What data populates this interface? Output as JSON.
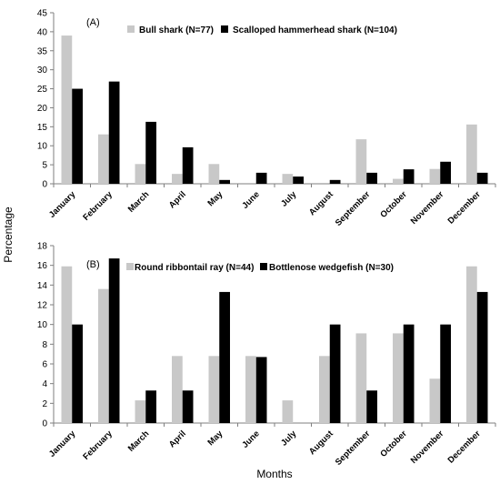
{
  "figure": {
    "ylabel": "Percentage",
    "xlabel": "Months"
  },
  "colors": {
    "series1": "#c8c8c8",
    "series2": "#000000",
    "axis": "#7f7f7f"
  },
  "chart_data": [
    {
      "type": "bar",
      "panel_label": "(A)",
      "categories": [
        "January",
        "February",
        "March",
        "April",
        "May",
        "June",
        "July",
        "August",
        "September",
        "October",
        "November",
        "December"
      ],
      "series": [
        {
          "name": "Bull shark (N=77)",
          "values": [
            39,
            13,
            5.2,
            2.6,
            5.2,
            0,
            2.6,
            0,
            11.7,
            1.3,
            3.9,
            15.6
          ]
        },
        {
          "name": "Scalloped hammerhead shark (N=104)",
          "values": [
            25,
            26.9,
            16.3,
            9.6,
            1,
            2.9,
            1.9,
            1,
            2.9,
            3.8,
            5.8,
            2.9
          ]
        }
      ],
      "ylim": [
        0,
        45
      ],
      "yticks": [
        0,
        5,
        10,
        15,
        20,
        25,
        30,
        35,
        40,
        45
      ],
      "grid": false,
      "legend": "top"
    },
    {
      "type": "bar",
      "panel_label": "(B)",
      "categories": [
        "January",
        "February",
        "March",
        "April",
        "May",
        "June",
        "July",
        "August",
        "September",
        "October",
        "November",
        "December"
      ],
      "series": [
        {
          "name": "Round ribbontail ray (N=44)",
          "values": [
            15.9,
            13.6,
            2.3,
            6.8,
            6.8,
            6.8,
            2.3,
            6.8,
            9.1,
            9.1,
            4.5,
            15.9
          ]
        },
        {
          "name": "Bottlenose wedgefish (N=30)",
          "values": [
            10,
            16.7,
            3.3,
            3.3,
            13.3,
            6.7,
            0,
            10,
            3.3,
            10,
            10,
            13.3
          ]
        }
      ],
      "ylim": [
        0,
        18
      ],
      "yticks": [
        0,
        2,
        4,
        6,
        8,
        10,
        12,
        14,
        16,
        18
      ],
      "grid": false,
      "legend": "top"
    }
  ]
}
